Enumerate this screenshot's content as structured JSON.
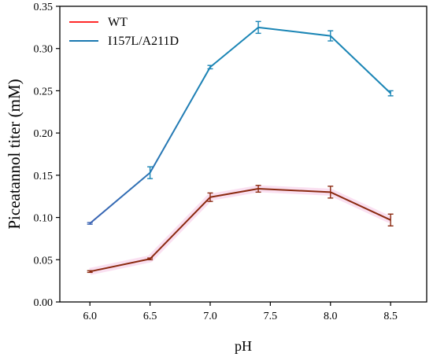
{
  "chart_data": {
    "type": "line",
    "xlabel": "pH",
    "ylabel": "Piceatannol titer (mM)",
    "x": [
      6.0,
      6.5,
      7.0,
      7.4,
      8.0,
      8.5
    ],
    "xticks": [
      6.0,
      6.5,
      7.0,
      7.5,
      8.0,
      8.5
    ],
    "xtick_labels": [
      "6.0",
      "6.5",
      "7.0",
      "7.5",
      "8.0",
      "8.5"
    ],
    "xlim": [
      5.75,
      8.8
    ],
    "ylim": [
      0,
      0.35
    ],
    "yticks": [
      0,
      0.05,
      0.1,
      0.15,
      0.2,
      0.25,
      0.3,
      0.35
    ],
    "ytick_labels": [
      "0.00",
      "0.05",
      "0.10",
      "0.15",
      "0.20",
      "0.25",
      "0.30",
      "0.35"
    ],
    "legend_position": "top-left",
    "grid": false,
    "series": [
      {
        "name": "WT",
        "legend_color": "#ff2a2a",
        "line_color": "#8b2a10",
        "values": [
          0.036,
          0.051,
          0.124,
          0.134,
          0.13,
          0.097
        ],
        "errors": [
          0.001,
          0.001,
          0.005,
          0.004,
          0.007,
          0.007
        ]
      },
      {
        "name": "I157L/A211D",
        "legend_color": "#1a78b0",
        "line_color": "#1a85b5",
        "line_color_start": "#3a63b3",
        "values": [
          0.093,
          0.153,
          0.278,
          0.325,
          0.315,
          0.247
        ],
        "errors": [
          0.001,
          0.007,
          0.002,
          0.007,
          0.006,
          0.003
        ]
      }
    ]
  }
}
